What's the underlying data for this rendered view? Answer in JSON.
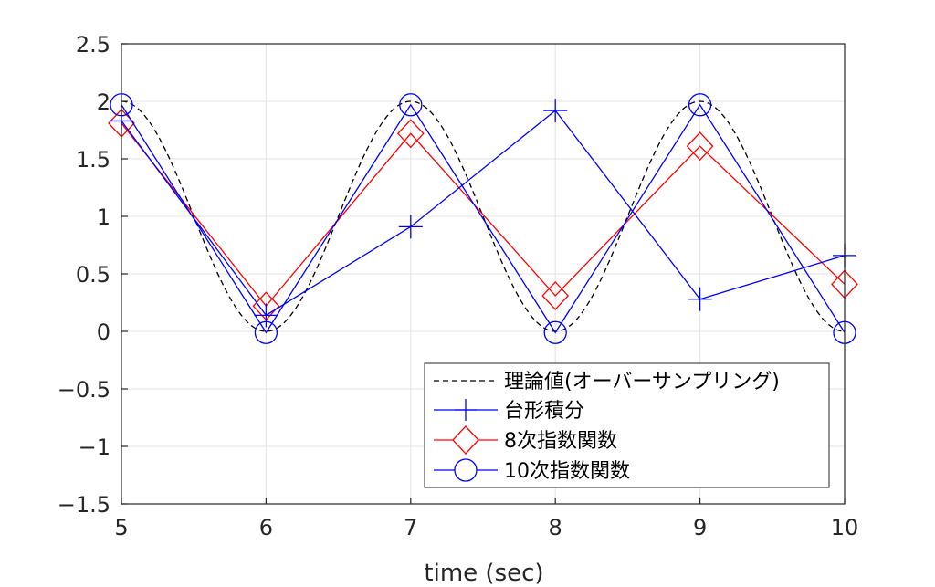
{
  "chart_data": {
    "type": "line",
    "title": "",
    "xlabel": "time (sec)",
    "ylabel": "",
    "xlim": [
      5,
      10
    ],
    "ylim": [
      -1.5,
      2.5
    ],
    "xticks": [
      5,
      6,
      7,
      8,
      9,
      10
    ],
    "yticks": [
      2.5,
      2,
      1.5,
      1,
      0.5,
      0,
      -0.5,
      -1,
      -1.5
    ],
    "ytick_labels": [
      "2.5",
      "2",
      "1.5",
      "1",
      "0.5",
      "0",
      "−0.5",
      "−1",
      "−1.5"
    ],
    "grid": true,
    "legend_position": "lower-right",
    "theory": {
      "name": "理論値(オーバーサンプリング)",
      "style": "dashed",
      "color": "#000000",
      "function": "1 + cos(pi*(t-5))",
      "x_range": [
        5,
        10
      ]
    },
    "series": [
      {
        "name": "台形積分",
        "marker": "plus",
        "color": "#0000ff",
        "x": [
          5,
          6,
          7,
          8,
          9,
          10
        ],
        "y": [
          1.83,
          0.14,
          0.91,
          1.92,
          0.28,
          0.66
        ]
      },
      {
        "name": "8次指数関数",
        "marker": "diamond",
        "color": "#ff0000",
        "x": [
          5,
          6,
          7,
          8,
          9,
          10
        ],
        "y": [
          1.81,
          0.22,
          1.72,
          0.31,
          1.61,
          0.41
        ]
      },
      {
        "name": "10次指数関数",
        "marker": "circle",
        "color": "#0000ff",
        "x": [
          5,
          6,
          7,
          8,
          9,
          10
        ],
        "y": [
          1.97,
          -0.01,
          1.97,
          -0.01,
          1.97,
          -0.01
        ]
      }
    ]
  }
}
